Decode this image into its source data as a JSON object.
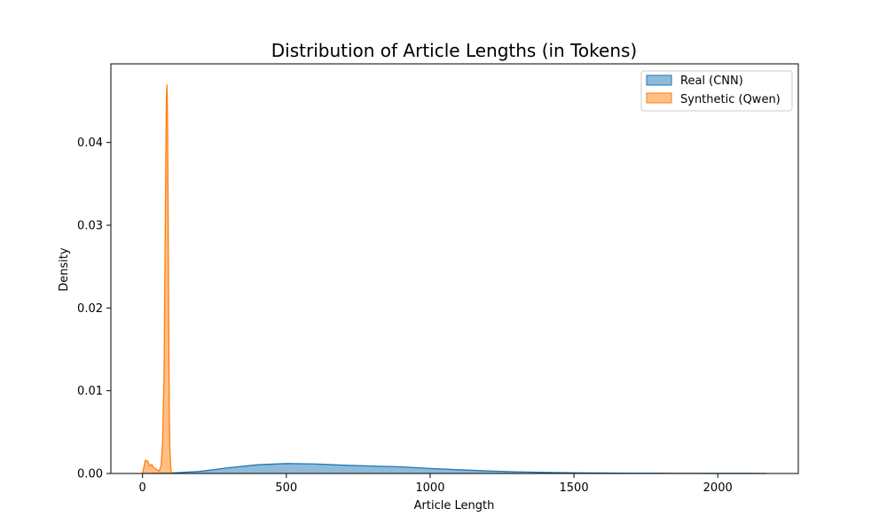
{
  "chart_data": {
    "type": "area",
    "title": "Distribution of Article Lengths (in Tokens)",
    "xlabel": "Article Length",
    "ylabel": "Density",
    "xlim": [
      -110,
      2280
    ],
    "ylim": [
      0,
      0.0495
    ],
    "xticks": [
      0,
      500,
      1000,
      1500,
      2000
    ],
    "yticks": [
      0.0,
      0.01,
      0.02,
      0.03,
      0.04
    ],
    "ytick_labels": [
      "0.00",
      "0.01",
      "0.02",
      "0.03",
      "0.04"
    ],
    "grid": false,
    "legend_position": "top-right",
    "series": [
      {
        "name": "Real (CNN)",
        "color": "#1f77b4",
        "fill": "#7fb1d9",
        "x": [
          30,
          100,
          200,
          300,
          400,
          500,
          600,
          700,
          800,
          900,
          1000,
          1100,
          1200,
          1300,
          1400,
          1500,
          1600,
          1700,
          1800,
          1900,
          2000,
          2100,
          2170
        ],
        "y": [
          0.0,
          5e-05,
          0.00025,
          0.0007,
          0.00105,
          0.0012,
          0.00115,
          0.001,
          0.0009,
          0.0008,
          0.0006,
          0.00045,
          0.0003,
          0.0002,
          0.00013,
          8e-05,
          5e-05,
          3e-05,
          2e-05,
          1.2e-05,
          8e-06,
          4e-06,
          0.0
        ]
      },
      {
        "name": "Synthetic (Qwen)",
        "color": "#ff7f0e",
        "fill": "#ffb576",
        "x": [
          0,
          5,
          10,
          18,
          25,
          32,
          38,
          45,
          52,
          58,
          65,
          70,
          75,
          78,
          81,
          83,
          85,
          87,
          89,
          91,
          93,
          95,
          98,
          100,
          105
        ],
        "y": [
          0.0,
          0.0008,
          0.0016,
          0.0015,
          0.0009,
          0.0011,
          0.0007,
          0.0006,
          0.0004,
          0.0003,
          0.001,
          0.004,
          0.012,
          0.025,
          0.038,
          0.0455,
          0.047,
          0.043,
          0.032,
          0.019,
          0.008,
          0.003,
          0.0008,
          0.0002,
          0.0
        ]
      }
    ]
  }
}
